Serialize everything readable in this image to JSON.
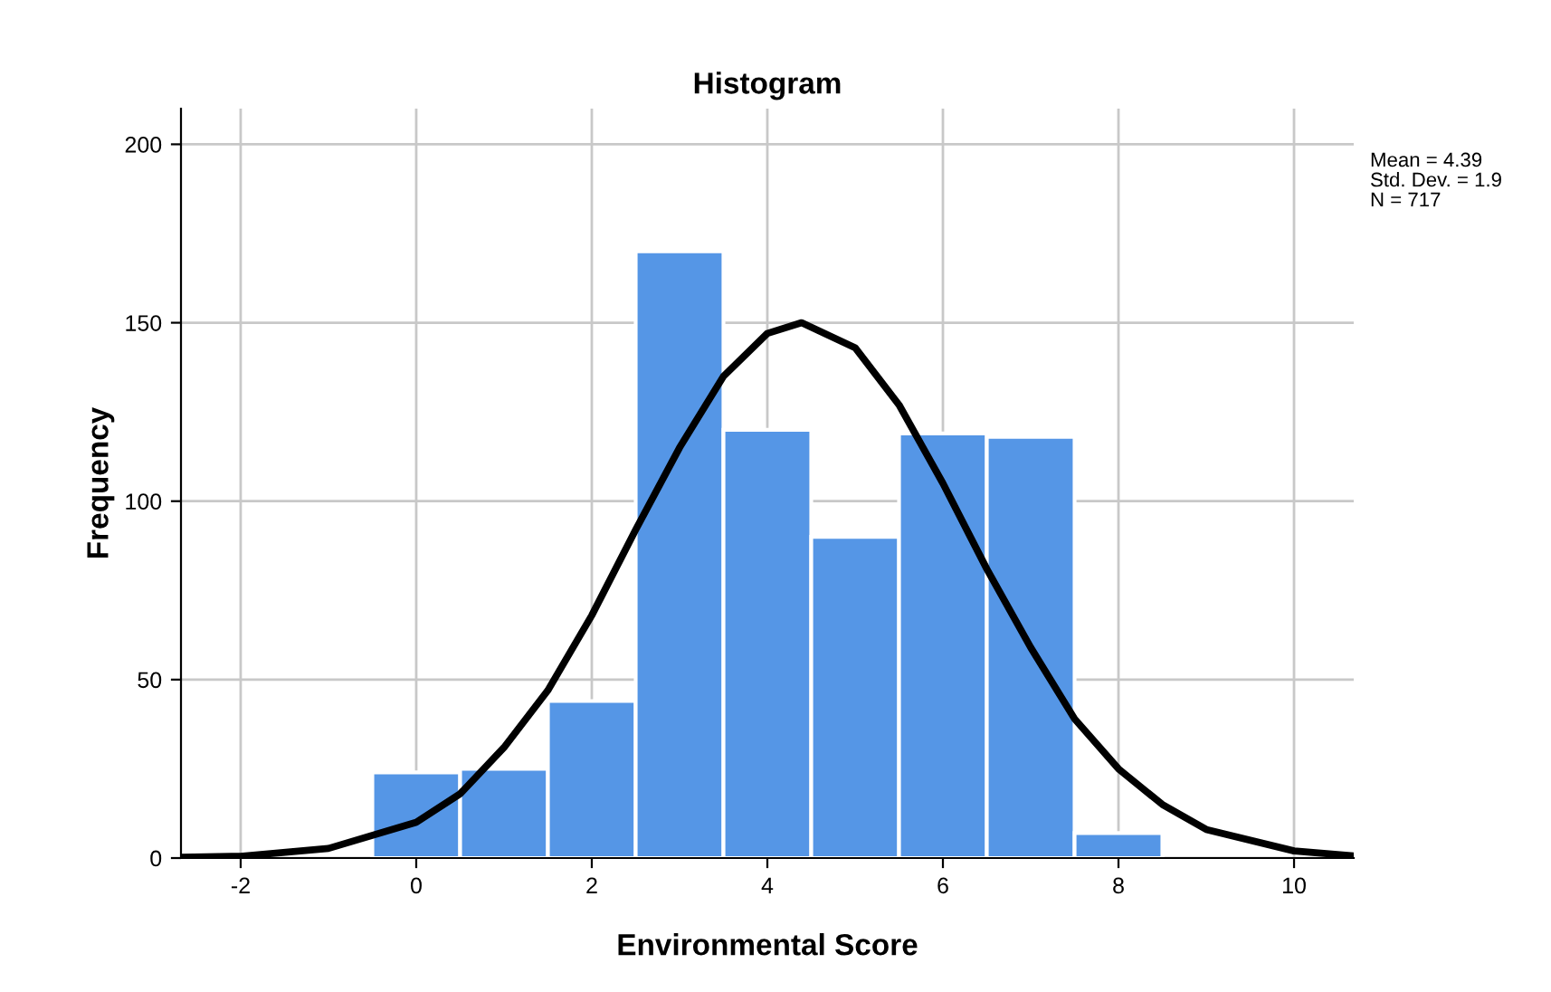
{
  "chart_data": {
    "type": "histogram",
    "title": "Histogram",
    "xlabel": "Environmental Score",
    "ylabel": "Frequency",
    "bins": [
      -0.5,
      0.5,
      1.5,
      2.5,
      3.5,
      4.5,
      5.5,
      6.5,
      7.5,
      8.5
    ],
    "values": [
      24,
      25,
      44,
      170,
      120,
      90,
      119,
      118,
      7
    ],
    "color": "#5596e6",
    "series": [
      {
        "type": "line",
        "color": "#000000",
        "x": [
          -2.68,
          -2,
          -1,
          0,
          0.5,
          1,
          1.5,
          2,
          2.5,
          3,
          3.5,
          4,
          4.39,
          5,
          5.5,
          6,
          6.5,
          7,
          7.5,
          8,
          8.5,
          9,
          10,
          10.68
        ],
        "values": [
          0.2,
          0.5,
          2.7,
          10,
          18,
          31,
          47,
          68,
          92,
          115,
          135,
          147,
          150,
          143,
          127,
          105,
          81,
          59,
          39,
          25,
          15,
          8,
          2,
          0.6
        ]
      }
    ],
    "xlim": [
      -2.68,
      10.68
    ],
    "xticks": [
      -2,
      0,
      2,
      4,
      6,
      8,
      10
    ],
    "ylim": [
      0,
      210
    ],
    "yticks": [
      0,
      50,
      100,
      150,
      200
    ],
    "grid": true,
    "legend": false,
    "annotations": [
      "Mean = 4.39",
      "Std. Dev. = 1.9",
      "N = 717"
    ]
  }
}
